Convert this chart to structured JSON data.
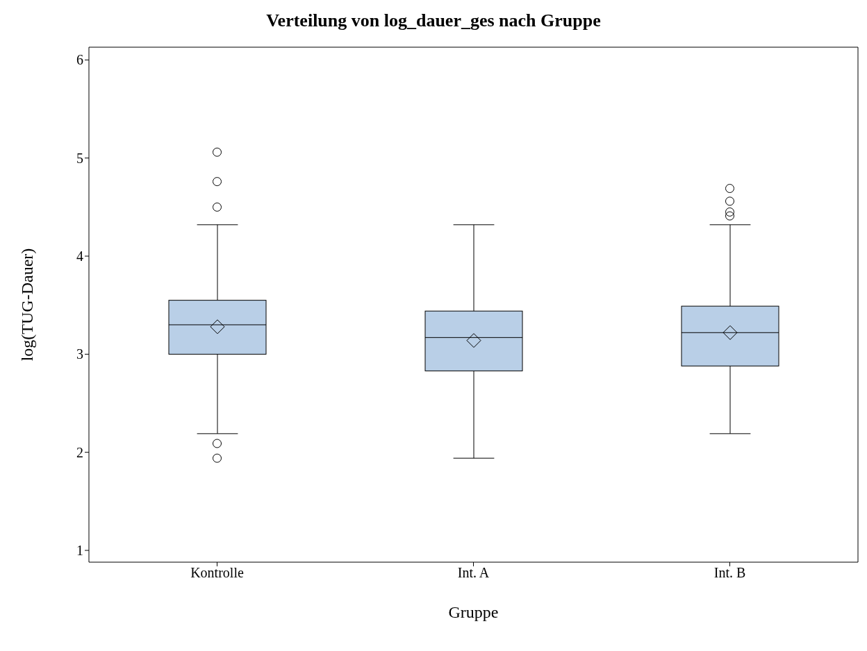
{
  "chart_data": {
    "type": "box",
    "title": "Verteilung von log_dauer_ges nach Gruppe",
    "xlabel": "Gruppe",
    "ylabel": "log(TUG-Dauer)",
    "categories": [
      "Kontrolle",
      "Int. A",
      "Int. B"
    ],
    "color": "#b9cfe7",
    "boxes": [
      {
        "low": 2.19,
        "q1": 3.0,
        "median": 3.3,
        "q3": 3.55,
        "high": 4.32,
        "mean": 3.28,
        "outliers": [
          5.06,
          4.76,
          4.5,
          2.09,
          1.94
        ]
      },
      {
        "low": 1.94,
        "q1": 2.83,
        "median": 3.17,
        "q3": 3.44,
        "high": 4.32,
        "mean": 3.14
      },
      {
        "low": 2.19,
        "q1": 2.88,
        "median": 3.22,
        "q3": 3.49,
        "high": 4.32,
        "mean": 3.22,
        "outliers": [
          4.69,
          4.56,
          4.45,
          4.41
        ]
      }
    ],
    "ylim": [
      0.88,
      6.13
    ],
    "yticks": [
      1,
      2,
      3,
      4,
      5,
      6
    ]
  }
}
